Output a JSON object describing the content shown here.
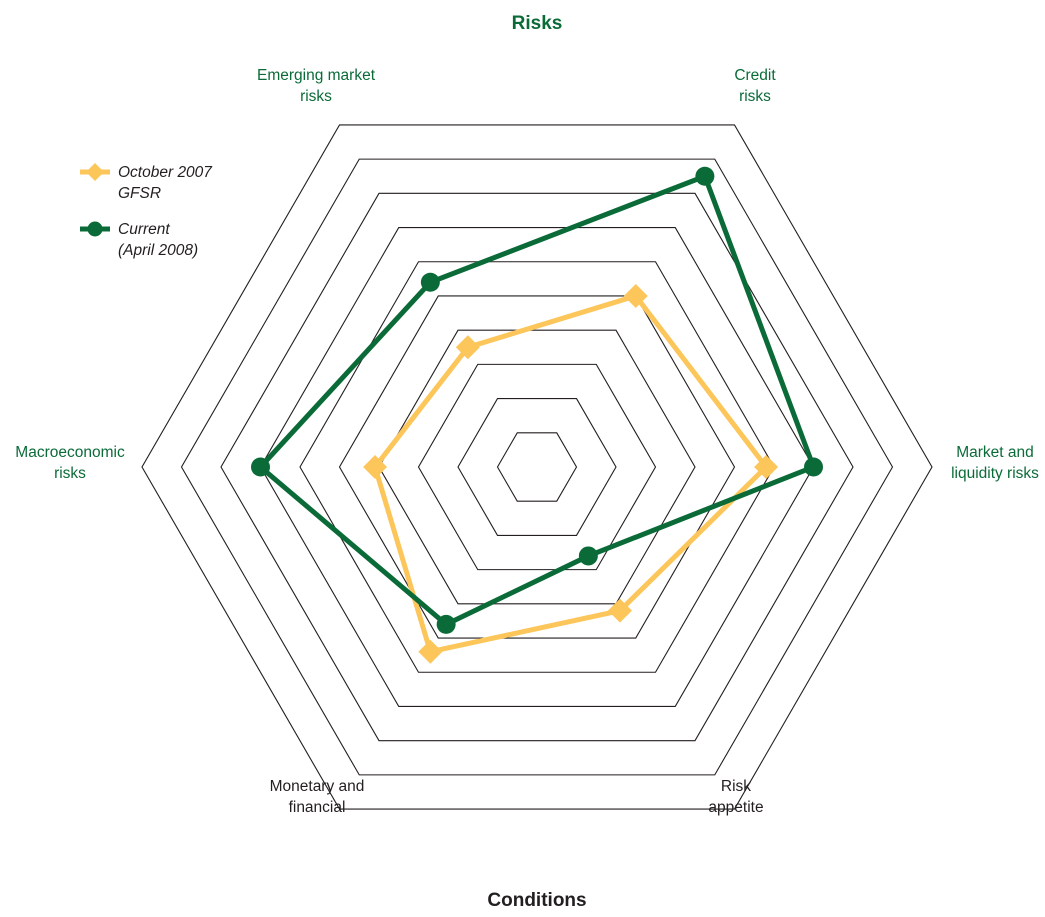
{
  "chart_data": {
    "type": "radar",
    "title": "Risks",
    "bottom_title": "Conditions",
    "axes": [
      {
        "label": [
          "Credit",
          "risks"
        ],
        "group": "risks"
      },
      {
        "label": [
          "Market and",
          "liquidity risks"
        ],
        "group": "risks"
      },
      {
        "label": [
          "Risk",
          "appetite"
        ],
        "group": "conditions"
      },
      {
        "label": [
          "Monetary and",
          "financial"
        ],
        "group": "conditions"
      },
      {
        "label": [
          "Macroeconomic",
          "risks"
        ],
        "group": "risks"
      },
      {
        "label": [
          "Emerging market",
          "risks"
        ],
        "group": "risks"
      }
    ],
    "rings": 10,
    "range": [
      0,
      10
    ],
    "series": [
      {
        "name": [
          "October 2007",
          "GFSR"
        ],
        "marker": "diamond",
        "color": "#FCC65A",
        "values": [
          5.0,
          5.8,
          4.2,
          5.4,
          4.1,
          3.5
        ]
      },
      {
        "name": [
          "Current",
          "(April 2008)"
        ],
        "marker": "circle",
        "color": "#0B6B38",
        "values": [
          8.5,
          7.0,
          2.6,
          4.6,
          7.0,
          5.4
        ]
      }
    ],
    "colors": {
      "risk_label": "#0B6B38",
      "condition_label": "#231F20",
      "grid": "#231F20"
    }
  }
}
